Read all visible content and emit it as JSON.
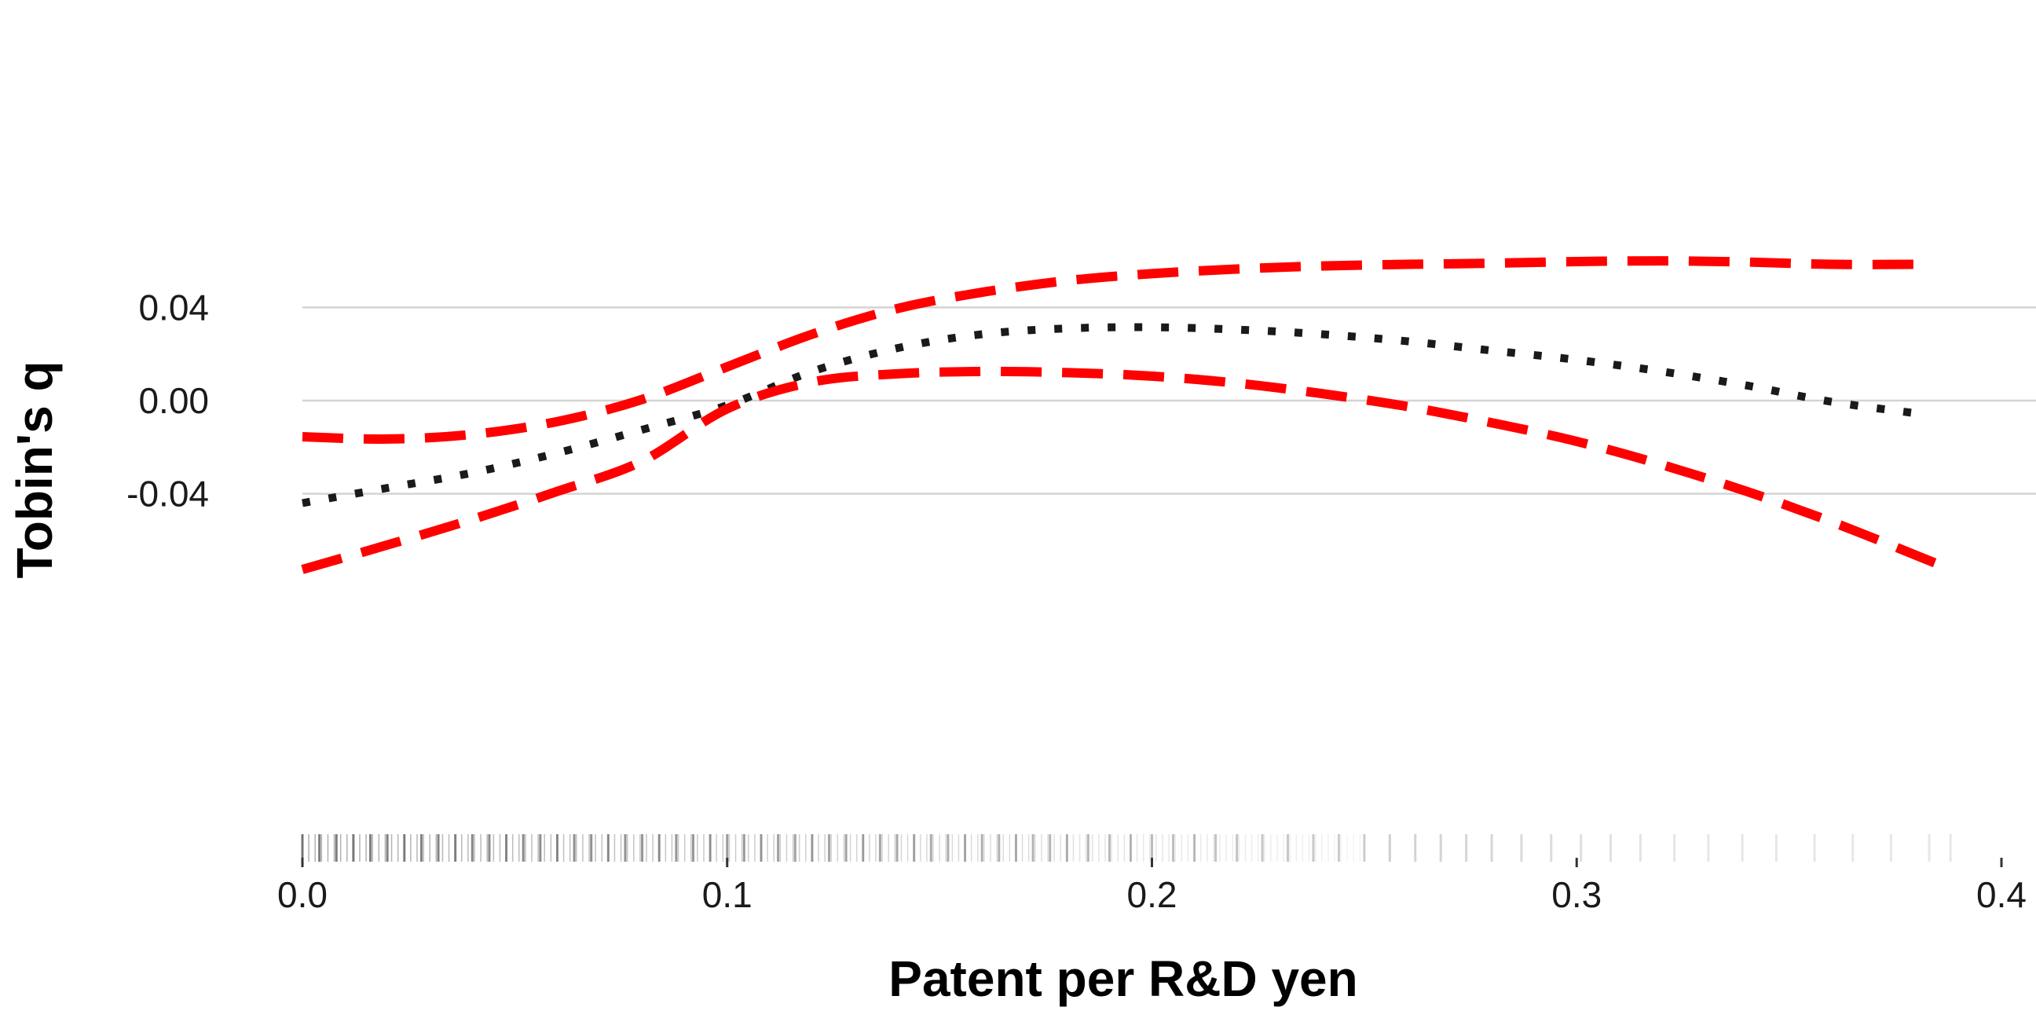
{
  "chart_data": {
    "type": "line",
    "title": "",
    "xlabel": "Patent per R&D yen",
    "ylabel": "Tobin's q",
    "xlim": [
      0.0,
      0.4
    ],
    "ylim": [
      -0.075,
      0.062
    ],
    "xticks": [
      0.0,
      0.1,
      0.2,
      0.3,
      0.4
    ],
    "xtick_labels": [
      "0.0",
      "0.1",
      "0.2",
      "0.3",
      "0.4"
    ],
    "yticks": [
      -0.04,
      0.0,
      0.04
    ],
    "ytick_labels": [
      "-0.04",
      "0.00",
      "0.04"
    ],
    "grid": "horizontal",
    "legend": "none",
    "rug": true,
    "series": [
      {
        "style": "upper-bound",
        "line": "dashed",
        "color": "#ff0000",
        "x": [
          0.0,
          0.02,
          0.04,
          0.06,
          0.08,
          0.1,
          0.12,
          0.14,
          0.16,
          0.18,
          0.2,
          0.22,
          0.24,
          0.26,
          0.28,
          0.3,
          0.32,
          0.34,
          0.36,
          0.38
        ],
        "y": [
          -0.0155,
          -0.0165,
          -0.0145,
          -0.009,
          0.0005,
          0.0145,
          0.0285,
          0.0395,
          0.0465,
          0.0515,
          0.0545,
          0.0565,
          0.0578,
          0.0585,
          0.059,
          0.0597,
          0.06,
          0.0595,
          0.0585,
          0.0585
        ]
      },
      {
        "style": "estimate",
        "line": "dotted",
        "color": "#1a1a1a",
        "x": [
          0.0,
          0.02,
          0.04,
          0.06,
          0.08,
          0.1,
          0.12,
          0.14,
          0.16,
          0.18,
          0.2,
          0.22,
          0.24,
          0.26,
          0.28,
          0.3,
          0.32,
          0.34,
          0.36,
          0.38
        ],
        "y": [
          -0.044,
          -0.0375,
          -0.031,
          -0.0225,
          -0.0125,
          -0.002,
          0.0125,
          0.0225,
          0.0285,
          0.031,
          0.0315,
          0.0305,
          0.0285,
          0.0255,
          0.0215,
          0.0175,
          0.0125,
          0.0065,
          -0.0005,
          -0.0055
        ]
      },
      {
        "style": "lower-bound",
        "line": "dashed",
        "color": "#ff0000",
        "x": [
          0.0,
          0.02,
          0.04,
          0.06,
          0.08,
          0.1,
          0.12,
          0.14,
          0.16,
          0.18,
          0.2,
          0.22,
          0.24,
          0.26,
          0.28,
          0.3,
          0.32,
          0.34,
          0.36,
          0.38,
          0.388
        ],
        "y": [
          -0.0725,
          -0.062,
          -0.051,
          -0.039,
          -0.026,
          -0.0035,
          0.008,
          0.0115,
          0.0125,
          0.012,
          0.0105,
          0.0075,
          0.003,
          -0.0025,
          -0.0095,
          -0.0175,
          -0.0275,
          -0.039,
          -0.052,
          -0.0665,
          -0.0725
        ]
      }
    ],
    "rug_x": [
      0.0,
      0.004,
      0.008,
      0.012,
      0.016,
      0.02,
      0.024,
      0.028,
      0.032,
      0.036,
      0.04,
      0.044,
      0.048,
      0.052,
      0.056,
      0.06,
      0.064,
      0.068,
      0.072,
      0.076,
      0.08,
      0.084,
      0.088,
      0.092,
      0.096,
      0.1,
      0.104,
      0.108,
      0.112,
      0.116,
      0.12,
      0.124,
      0.128,
      0.132,
      0.136,
      0.14,
      0.144,
      0.148,
      0.152,
      0.156,
      0.16,
      0.164,
      0.168,
      0.172,
      0.176,
      0.18,
      0.185,
      0.19,
      0.195,
      0.2,
      0.205,
      0.21,
      0.215,
      0.22,
      0.226,
      0.232,
      0.238,
      0.244,
      0.25,
      0.256,
      0.262,
      0.268,
      0.274,
      0.28,
      0.287,
      0.294,
      0.301,
      0.308,
      0.315,
      0.323,
      0.331,
      0.339,
      0.347,
      0.356,
      0.365,
      0.374,
      0.383,
      0.388
    ]
  }
}
